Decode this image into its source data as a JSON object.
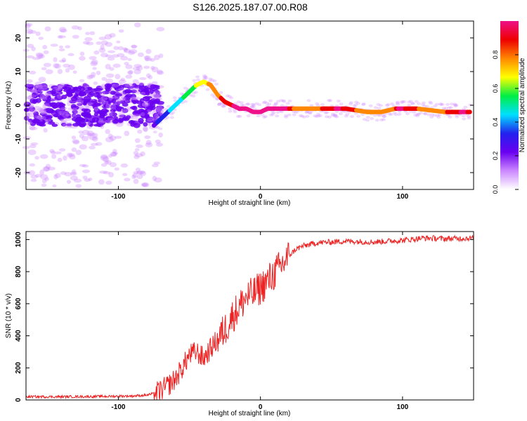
{
  "title": "S126.2025.187.07.00.R08",
  "colors": {
    "series_line": "#ee2222",
    "colormap": [
      "#ffffff",
      "#cc88ff",
      "#6a00f0",
      "#2222ee",
      "#00e0ff",
      "#00ee44",
      "#ffff00",
      "#ff8800",
      "#ee0000",
      "#ee1188"
    ]
  },
  "chart_data": [
    {
      "type": "heatmap",
      "panel": "spectrogram",
      "xlabel": "Height of straight line (km)",
      "ylabel": "Frequency (Hz)",
      "xlim": [
        -165,
        150
      ],
      "ylim": [
        -25,
        25
      ],
      "xticks": [
        -100,
        0,
        100
      ],
      "yticks": [
        20,
        10,
        0,
        -10,
        -20
      ],
      "grid": false,
      "ridge": {
        "x": [
          -75,
          -70,
          -65,
          -60,
          -55,
          -50,
          -45,
          -40,
          -35,
          -30,
          -25,
          -20,
          -15,
          -10,
          -5,
          0,
          5,
          10,
          20,
          40,
          60,
          75,
          85,
          95,
          100,
          110,
          130,
          150
        ],
        "freq": [
          -6,
          -4,
          -2,
          0,
          2,
          4,
          6,
          7,
          6,
          3,
          1,
          0,
          -1,
          -1,
          -2,
          -2,
          -1,
          -1,
          -1,
          -1,
          -1,
          -2,
          -2,
          -1,
          -1,
          -1,
          -2,
          -2
        ]
      },
      "colorbar": {
        "label": "Normalized spectral amplitude",
        "range": [
          0.0,
          1.0
        ],
        "ticks": [
          0.0,
          0.2,
          0.4,
          0.6,
          0.8
        ],
        "tick_labels": [
          "0.0",
          "0.2",
          "0.4",
          "0.6",
          "0.8"
        ]
      }
    },
    {
      "type": "line",
      "panel": "snr",
      "xlabel": "Height of straight line (km)",
      "ylabel": "SNR (10 * v/v)",
      "xlim": [
        -165,
        150
      ],
      "ylim": [
        0,
        1050
      ],
      "xticks": [
        -100,
        0,
        100
      ],
      "yticks": [
        0,
        200,
        400,
        600,
        800,
        1000
      ],
      "grid": false,
      "series": [
        {
          "x": [
            -165,
            -140,
            -110,
            -90,
            -80,
            -75,
            -70,
            -65,
            -60,
            -55,
            -50,
            -45,
            -40,
            -35,
            -30,
            -25,
            -20,
            -15,
            -10,
            -5,
            0,
            5,
            10,
            15,
            20,
            25,
            30,
            40,
            60,
            80,
            100,
            115,
            130,
            150
          ],
          "y": [
            20,
            20,
            22,
            25,
            30,
            40,
            60,
            90,
            130,
            200,
            280,
            300,
            260,
            320,
            380,
            440,
            520,
            580,
            640,
            660,
            700,
            740,
            790,
            840,
            900,
            940,
            960,
            980,
            990,
            985,
            995,
            1010,
            1005,
            1010
          ]
        }
      ]
    }
  ]
}
